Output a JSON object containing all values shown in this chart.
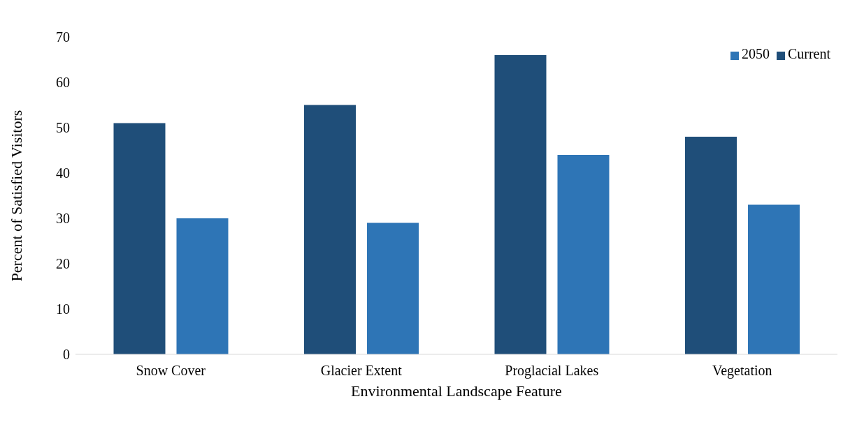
{
  "chart_data": {
    "type": "bar",
    "xlabel": "Environmental Landscape Feature",
    "ylabel": "Percent of Satisfied Visitors",
    "categories": [
      "Snow Cover",
      "Glacier Extent",
      "Proglacial Lakes",
      "Vegetation"
    ],
    "series": [
      {
        "name": "Current",
        "color": "#1f4e79",
        "values": [
          51,
          55,
          66,
          48
        ]
      },
      {
        "name": "2050",
        "color": "#2e75b6",
        "values": [
          30,
          29,
          44,
          33
        ]
      }
    ],
    "ylim": [
      0,
      70
    ],
    "yticks": [
      0,
      10,
      20,
      30,
      40,
      50,
      60,
      70
    ],
    "grid": false,
    "legend": "top right"
  }
}
